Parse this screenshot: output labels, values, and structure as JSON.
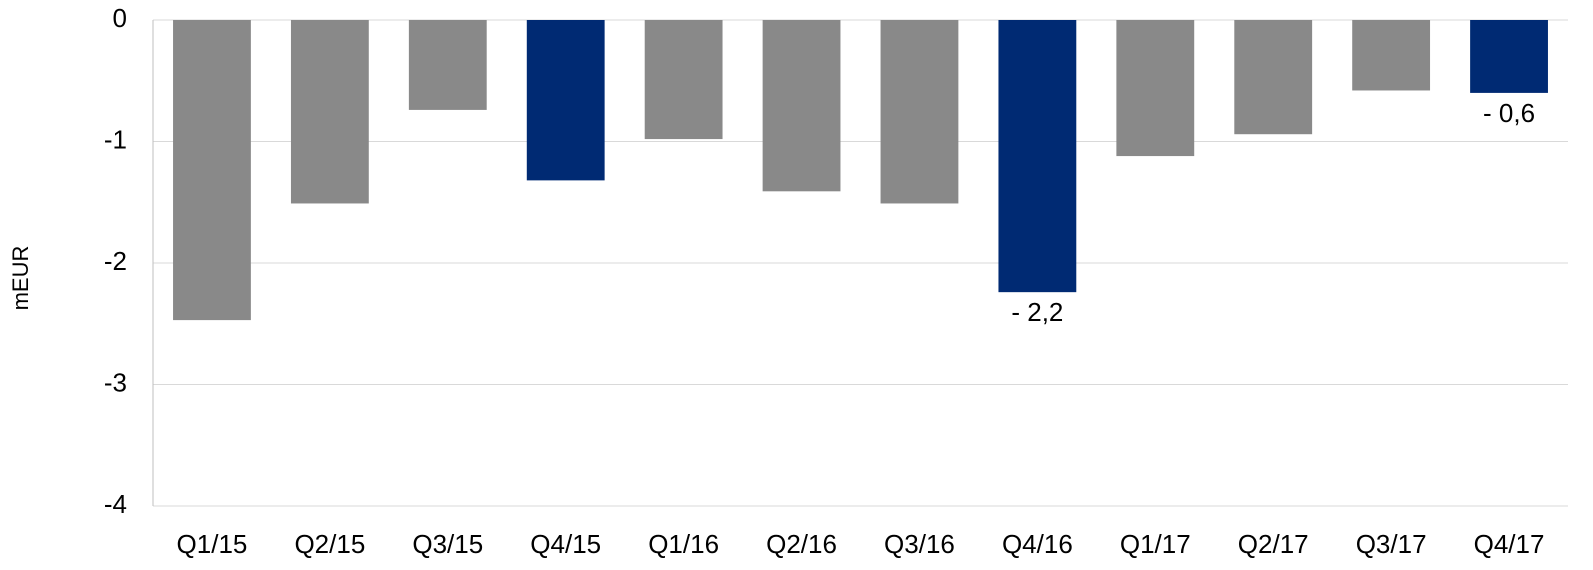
{
  "chart_data": {
    "type": "bar",
    "y_label": "mEUR",
    "categories": [
      "Q1/15",
      "Q2/15",
      "Q3/15",
      "Q4/15",
      "Q1/16",
      "Q2/16",
      "Q3/16",
      "Q4/16",
      "Q1/17",
      "Q2/17",
      "Q3/17",
      "Q4/17"
    ],
    "values": [
      -2.47,
      -1.51,
      -0.74,
      -1.32,
      -0.98,
      -1.41,
      -1.51,
      -2.24,
      -1.12,
      -0.94,
      -0.58,
      -0.6
    ],
    "value_labels": [
      null,
      null,
      null,
      null,
      null,
      null,
      null,
      "- 2,2",
      null,
      null,
      null,
      "- 0,6"
    ],
    "colors": [
      "#898989",
      "#898989",
      "#898989",
      "#002a73",
      "#898989",
      "#898989",
      "#898989",
      "#002a73",
      "#898989",
      "#898989",
      "#898989",
      "#002a73"
    ],
    "ylim": [
      -4,
      0
    ],
    "yticks": [
      0,
      -1,
      -2,
      -3,
      -4
    ],
    "grid": true
  }
}
